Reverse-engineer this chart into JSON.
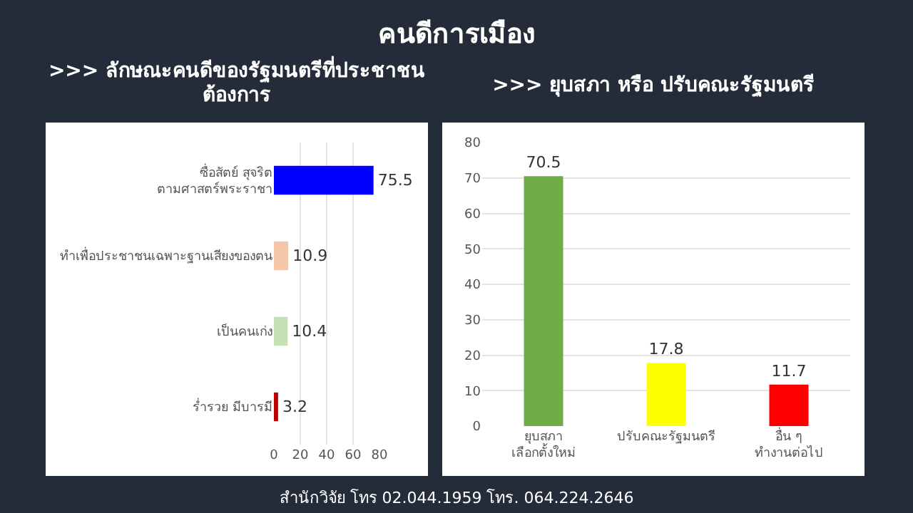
{
  "chart_data": [
    {
      "type": "bar",
      "title": "คนดีการเมือง",
      "subtitle": ">>> ลักษณะคนดีของรัฐมนตรีที่ประชาชนต้องการ",
      "orientation": "horizontal",
      "categories": [
        "ซื่อสัตย์ สุจริต ตามศาสตร์พระราชา",
        "ทำเพื่อประชาชนเฉพาะฐานเสียงของตน",
        "เป็นคนเก่ง",
        "ร่ำรวย มีบารมี"
      ],
      "values": [
        75.5,
        10.9,
        10.4,
        3.2
      ],
      "colors": [
        "#0000ff",
        "#f4c7a8",
        "#c5e0b3",
        "#c00000"
      ],
      "xlim": [
        0,
        80
      ],
      "xticks": [
        0,
        20,
        40,
        60,
        80
      ],
      "grid": "x",
      "data_labels": true
    },
    {
      "type": "bar",
      "title": ">>> ยุบสภา หรือ ปรับคณะรัฐมนตรี",
      "categories": [
        "ยุบสภา เลือกตั้งใหม่",
        "ปรับคณะรัฐมนตรี",
        "อื่น ๆ ทำงานต่อไป"
      ],
      "values": [
        70.5,
        17.8,
        11.7
      ],
      "colors": [
        "#70ad47",
        "#ffff00",
        "#ff0000"
      ],
      "ylim": [
        0,
        80
      ],
      "yticks": [
        0,
        10,
        20,
        30,
        40,
        50,
        60,
        70,
        80
      ],
      "grid": "y",
      "data_labels": true,
      "annotations": [
        "สำนักวิจัย โทร 02.044.1959 โทร. 064.224.2646"
      ]
    }
  ]
}
